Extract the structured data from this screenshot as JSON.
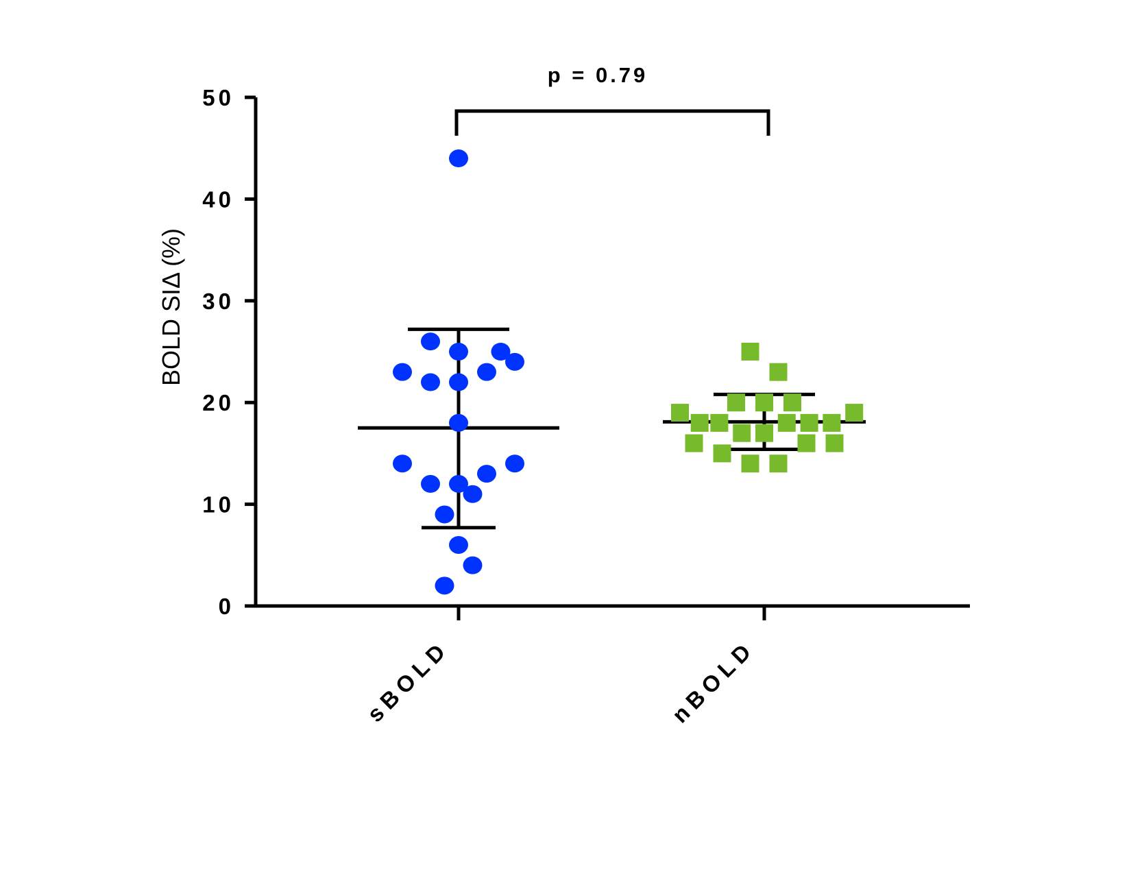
{
  "chart_data": {
    "type": "scatter",
    "title": "",
    "xlabel": "",
    "ylabel": "BOLD SIΔ (%)",
    "ylim": [
      0,
      50
    ],
    "yticks": [
      0,
      10,
      20,
      30,
      40,
      50
    ],
    "categories": [
      "sBOLD",
      "nBOLD"
    ],
    "grid": false,
    "annotation": "p = 0.79",
    "colors": {
      "sBOLD": "#0033ff",
      "nBOLD": "#77bb2c",
      "lines": "#000000"
    },
    "series": [
      {
        "category": "sBOLD",
        "marker": "circle",
        "points": [
          {
            "offset": 0,
            "y": 44
          },
          {
            "offset": -1,
            "y": 26
          },
          {
            "offset": 0,
            "y": 25
          },
          {
            "offset": 1.5,
            "y": 25
          },
          {
            "offset": 2,
            "y": 24
          },
          {
            "offset": -2,
            "y": 23
          },
          {
            "offset": 1,
            "y": 23
          },
          {
            "offset": -1,
            "y": 22
          },
          {
            "offset": 0,
            "y": 22
          },
          {
            "offset": 0,
            "y": 18
          },
          {
            "offset": -2,
            "y": 14
          },
          {
            "offset": 2,
            "y": 14
          },
          {
            "offset": 1,
            "y": 13
          },
          {
            "offset": -1,
            "y": 12
          },
          {
            "offset": 0,
            "y": 12
          },
          {
            "offset": 0.5,
            "y": 11
          },
          {
            "offset": -0.5,
            "y": 9
          },
          {
            "offset": 0,
            "y": 6
          },
          {
            "offset": 0.5,
            "y": 4
          },
          {
            "offset": -0.5,
            "y": 2
          }
        ],
        "mean": 17.5,
        "sd_upper": 27.2,
        "sd_lower": 7.7
      },
      {
        "category": "nBOLD",
        "marker": "square",
        "points": [
          {
            "offset": -0.5,
            "y": 25
          },
          {
            "offset": 0.5,
            "y": 23
          },
          {
            "offset": -1,
            "y": 20
          },
          {
            "offset": 0,
            "y": 20
          },
          {
            "offset": 1,
            "y": 20
          },
          {
            "offset": -3,
            "y": 19
          },
          {
            "offset": 3.2,
            "y": 19
          },
          {
            "offset": -2.3,
            "y": 18
          },
          {
            "offset": -1.6,
            "y": 18
          },
          {
            "offset": 0.8,
            "y": 18
          },
          {
            "offset": 1.6,
            "y": 18
          },
          {
            "offset": 2.4,
            "y": 18
          },
          {
            "offset": -0.8,
            "y": 17
          },
          {
            "offset": 0,
            "y": 17
          },
          {
            "offset": -2.5,
            "y": 16
          },
          {
            "offset": 1.5,
            "y": 16
          },
          {
            "offset": 2.5,
            "y": 16
          },
          {
            "offset": -1.5,
            "y": 15
          },
          {
            "offset": -0.5,
            "y": 14
          },
          {
            "offset": 0.5,
            "y": 14
          }
        ],
        "mean": 18.1,
        "sd_upper": 20.8,
        "sd_lower": 15.4
      }
    ]
  }
}
